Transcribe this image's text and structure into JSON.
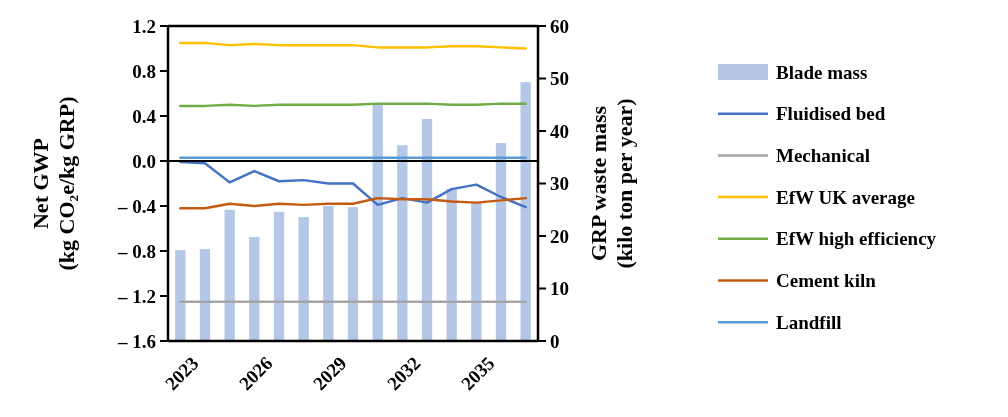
{
  "chart_data": {
    "type": "line",
    "categories": [
      "2023",
      null,
      null,
      "2026",
      null,
      null,
      "2029",
      null,
      null,
      "2032",
      null,
      null,
      "2035",
      null,
      null
    ],
    "ylabel": "Net GWP\n(kg CO₂e/kg GRP)",
    "y2label": "GRP waste mass\n(kilo ton per year)",
    "ylim": [
      -1.6,
      1.2
    ],
    "yticks": [
      {
        "value": -1.6,
        "label": "– 1.6"
      },
      {
        "value": -1.2,
        "label": "– 1.2"
      },
      {
        "value": -0.8,
        "label": "– 0.8"
      },
      {
        "value": -0.4,
        "label": "– 0.4"
      },
      {
        "value": 0,
        "label": "0.0"
      },
      {
        "value": 0.4,
        "label": "0.4"
      },
      {
        "value": 0.8,
        "label": "0.8"
      },
      {
        "value": 1.2,
        "label": "1.2"
      }
    ],
    "y2lim": [
      0,
      60
    ],
    "y2ticks": [
      0,
      10,
      20,
      30,
      40,
      50,
      60
    ],
    "legend": "right",
    "marker": "none",
    "line_style": "solid",
    "series": [
      {
        "name": "Blade mass",
        "type": "bar",
        "axis": "y2",
        "color": "#b4c7e7",
        "values": [
          17.3,
          17.5,
          25,
          19.8,
          24.6,
          23.6,
          25.7,
          25.5,
          45,
          37.3,
          42.3,
          29,
          26.3,
          37.7,
          49.3
        ]
      },
      {
        "name": "Fluidised bed",
        "color": "#4472c4",
        "values": [
          -0.01,
          -0.02,
          -0.19,
          -0.09,
          -0.18,
          -0.17,
          -0.2,
          -0.2,
          -0.39,
          -0.33,
          -0.37,
          -0.25,
          -0.21,
          -0.32,
          -0.41
        ]
      },
      {
        "name": "Mechanical",
        "color": "#a5a5a5",
        "values": [
          -1.25,
          -1.25,
          -1.25,
          -1.25,
          -1.25,
          -1.25,
          -1.25,
          -1.25,
          -1.25,
          -1.25,
          -1.25,
          -1.25,
          -1.25,
          -1.25,
          -1.25
        ]
      },
      {
        "name": "EfW UK average",
        "color": "#ffc000",
        "values": [
          1.05,
          1.05,
          1.03,
          1.04,
          1.03,
          1.03,
          1.03,
          1.03,
          1.01,
          1.01,
          1.01,
          1.02,
          1.02,
          1.01,
          1.0
        ]
      },
      {
        "name": "EfW high efficiency",
        "color": "#70ad47",
        "values": [
          0.49,
          0.49,
          0.5,
          0.49,
          0.5,
          0.5,
          0.5,
          0.5,
          0.51,
          0.51,
          0.51,
          0.5,
          0.5,
          0.51,
          0.51
        ]
      },
      {
        "name": "Cement kiln",
        "color": "#c55a11",
        "values": [
          -0.42,
          -0.42,
          -0.38,
          -0.4,
          -0.38,
          -0.39,
          -0.38,
          -0.38,
          -0.33,
          -0.34,
          -0.34,
          -0.36,
          -0.37,
          -0.35,
          -0.33
        ]
      },
      {
        "name": "Landfill",
        "color": "#5b9bd5",
        "values": [
          0.03,
          0.03,
          0.03,
          0.03,
          0.03,
          0.03,
          0.03,
          0.03,
          0.03,
          0.03,
          0.03,
          0.03,
          0.03,
          0.03,
          0.03
        ]
      }
    ]
  }
}
